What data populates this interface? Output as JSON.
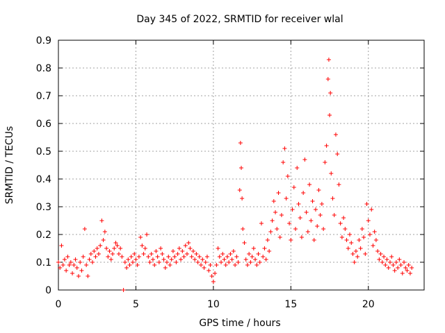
{
  "chart_data": {
    "type": "scatter",
    "title": "Day 345 of 2022, SRMTID for receiver wlal",
    "xlabel": "GPS time / hours",
    "ylabel": "SRMTID / TECUs",
    "xlim": [
      0,
      23.6
    ],
    "ylim": [
      0,
      0.9
    ],
    "xticks": [
      0,
      5,
      10,
      15,
      20
    ],
    "yticks": [
      0,
      0.1,
      0.2,
      0.3,
      0.4,
      0.5,
      0.6,
      0.7,
      0.8,
      0.9
    ],
    "xtick_labels": [
      "0",
      "5",
      "10",
      "15",
      "20"
    ],
    "ytick_labels": [
      "0",
      "0.1",
      "0.2",
      "0.3",
      "0.4",
      "0.5",
      "0.6",
      "0.7",
      "0.8",
      "0.9"
    ],
    "grid": true,
    "marker": "+",
    "color": "#ff0000",
    "series": [
      {
        "name": "SRMTID",
        "points": [
          [
            0.0,
            0.1
          ],
          [
            0.1,
            0.08
          ],
          [
            0.2,
            0.16
          ],
          [
            0.3,
            0.09
          ],
          [
            0.4,
            0.11
          ],
          [
            0.5,
            0.07
          ],
          [
            0.6,
            0.12
          ],
          [
            0.7,
            0.09
          ],
          [
            0.8,
            0.1
          ],
          [
            0.9,
            0.06
          ],
          [
            1.0,
            0.09
          ],
          [
            1.1,
            0.11
          ],
          [
            1.2,
            0.08
          ],
          [
            1.3,
            0.05
          ],
          [
            1.4,
            0.1
          ],
          [
            1.5,
            0.07
          ],
          [
            1.6,
            0.12
          ],
          [
            1.7,
            0.22
          ],
          [
            1.8,
            0.09
          ],
          [
            1.9,
            0.05
          ],
          [
            2.0,
            0.11
          ],
          [
            2.1,
            0.13
          ],
          [
            2.2,
            0.1
          ],
          [
            2.3,
            0.14
          ],
          [
            2.4,
            0.12
          ],
          [
            2.5,
            0.15
          ],
          [
            2.6,
            0.13
          ],
          [
            2.7,
            0.16
          ],
          [
            2.8,
            0.25
          ],
          [
            2.9,
            0.18
          ],
          [
            3.0,
            0.21
          ],
          [
            3.1,
            0.15
          ],
          [
            3.2,
            0.12
          ],
          [
            3.3,
            0.14
          ],
          [
            3.4,
            0.11
          ],
          [
            3.5,
            0.13
          ],
          [
            3.6,
            0.15
          ],
          [
            3.7,
            0.17
          ],
          [
            3.8,
            0.16
          ],
          [
            3.9,
            0.13
          ],
          [
            4.0,
            0.15
          ],
          [
            4.1,
            0.12
          ],
          [
            4.2,
            0.0
          ],
          [
            4.3,
            0.1
          ],
          [
            4.4,
            0.08
          ],
          [
            4.5,
            0.11
          ],
          [
            4.6,
            0.09
          ],
          [
            4.7,
            0.12
          ],
          [
            4.8,
            0.1
          ],
          [
            4.9,
            0.13
          ],
          [
            5.0,
            0.11
          ],
          [
            5.1,
            0.09
          ],
          [
            5.2,
            0.12
          ],
          [
            5.3,
            0.19
          ],
          [
            5.4,
            0.16
          ],
          [
            5.5,
            0.13
          ],
          [
            5.6,
            0.15
          ],
          [
            5.7,
            0.2
          ],
          [
            5.8,
            0.12
          ],
          [
            5.9,
            0.1
          ],
          [
            6.0,
            0.13
          ],
          [
            6.1,
            0.11
          ],
          [
            6.2,
            0.09
          ],
          [
            6.3,
            0.14
          ],
          [
            6.4,
            0.12
          ],
          [
            6.5,
            0.1
          ],
          [
            6.6,
            0.15
          ],
          [
            6.7,
            0.13
          ],
          [
            6.8,
            0.11
          ],
          [
            6.9,
            0.08
          ],
          [
            7.0,
            0.1
          ],
          [
            7.1,
            0.12
          ],
          [
            7.2,
            0.09
          ],
          [
            7.3,
            0.11
          ],
          [
            7.4,
            0.14
          ],
          [
            7.5,
            0.12
          ],
          [
            7.6,
            0.1
          ],
          [
            7.7,
            0.13
          ],
          [
            7.8,
            0.15
          ],
          [
            7.9,
            0.11
          ],
          [
            8.0,
            0.14
          ],
          [
            8.1,
            0.12
          ],
          [
            8.2,
            0.16
          ],
          [
            8.3,
            0.13
          ],
          [
            8.4,
            0.17
          ],
          [
            8.5,
            0.15
          ],
          [
            8.6,
            0.12
          ],
          [
            8.7,
            0.14
          ],
          [
            8.8,
            0.11
          ],
          [
            8.9,
            0.13
          ],
          [
            9.0,
            0.1
          ],
          [
            9.1,
            0.12
          ],
          [
            9.2,
            0.09
          ],
          [
            9.3,
            0.11
          ],
          [
            9.4,
            0.08
          ],
          [
            9.5,
            0.1
          ],
          [
            9.6,
            0.12
          ],
          [
            9.7,
            0.07
          ],
          [
            9.8,
            0.09
          ],
          [
            9.9,
            0.05
          ],
          [
            10.0,
            0.03
          ],
          [
            10.1,
            0.06
          ],
          [
            10.2,
            0.09
          ],
          [
            10.3,
            0.15
          ],
          [
            10.4,
            0.12
          ],
          [
            10.5,
            0.1
          ],
          [
            10.6,
            0.13
          ],
          [
            10.7,
            0.11
          ],
          [
            10.8,
            0.09
          ],
          [
            10.9,
            0.12
          ],
          [
            11.0,
            0.1
          ],
          [
            11.1,
            0.13
          ],
          [
            11.2,
            0.11
          ],
          [
            11.3,
            0.14
          ],
          [
            11.4,
            0.09
          ],
          [
            11.5,
            0.12
          ],
          [
            11.6,
            0.1
          ],
          [
            11.7,
            0.36
          ],
          [
            11.75,
            0.53
          ],
          [
            11.8,
            0.44
          ],
          [
            11.85,
            0.33
          ],
          [
            11.9,
            0.22
          ],
          [
            12.0,
            0.17
          ],
          [
            12.1,
            0.11
          ],
          [
            12.2,
            0.09
          ],
          [
            12.3,
            0.13
          ],
          [
            12.4,
            0.1
          ],
          [
            12.5,
            0.12
          ],
          [
            12.6,
            0.15
          ],
          [
            12.7,
            0.11
          ],
          [
            12.8,
            0.09
          ],
          [
            12.9,
            0.13
          ],
          [
            13.0,
            0.1
          ],
          [
            13.1,
            0.24
          ],
          [
            13.2,
            0.12
          ],
          [
            13.3,
            0.15
          ],
          [
            13.4,
            0.11
          ],
          [
            13.5,
            0.18
          ],
          [
            13.6,
            0.14
          ],
          [
            13.7,
            0.21
          ],
          [
            13.8,
            0.25
          ],
          [
            13.9,
            0.32
          ],
          [
            14.0,
            0.28
          ],
          [
            14.1,
            0.22
          ],
          [
            14.2,
            0.35
          ],
          [
            14.3,
            0.19
          ],
          [
            14.4,
            0.27
          ],
          [
            14.5,
            0.46
          ],
          [
            14.6,
            0.51
          ],
          [
            14.7,
            0.33
          ],
          [
            14.8,
            0.41
          ],
          [
            14.9,
            0.24
          ],
          [
            15.0,
            0.18
          ],
          [
            15.1,
            0.29
          ],
          [
            15.2,
            0.37
          ],
          [
            15.3,
            0.22
          ],
          [
            15.4,
            0.44
          ],
          [
            15.5,
            0.31
          ],
          [
            15.6,
            0.26
          ],
          [
            15.7,
            0.19
          ],
          [
            15.8,
            0.35
          ],
          [
            15.9,
            0.47
          ],
          [
            16.0,
            0.28
          ],
          [
            16.1,
            0.21
          ],
          [
            16.2,
            0.38
          ],
          [
            16.3,
            0.25
          ],
          [
            16.4,
            0.32
          ],
          [
            16.5,
            0.18
          ],
          [
            16.6,
            0.29
          ],
          [
            16.7,
            0.23
          ],
          [
            16.8,
            0.36
          ],
          [
            16.9,
            0.27
          ],
          [
            17.0,
            0.31
          ],
          [
            17.1,
            0.22
          ],
          [
            17.2,
            0.46
          ],
          [
            17.3,
            0.52
          ],
          [
            17.4,
            0.76
          ],
          [
            17.45,
            0.83
          ],
          [
            17.5,
            0.63
          ],
          [
            17.55,
            0.71
          ],
          [
            17.6,
            0.42
          ],
          [
            17.7,
            0.33
          ],
          [
            17.8,
            0.27
          ],
          [
            17.9,
            0.56
          ],
          [
            18.0,
            0.49
          ],
          [
            18.1,
            0.38
          ],
          [
            18.2,
            0.24
          ],
          [
            18.3,
            0.19
          ],
          [
            18.4,
            0.26
          ],
          [
            18.5,
            0.22
          ],
          [
            18.6,
            0.18
          ],
          [
            18.7,
            0.15
          ],
          [
            18.8,
            0.2
          ],
          [
            18.9,
            0.17
          ],
          [
            19.0,
            0.13
          ],
          [
            19.1,
            0.1
          ],
          [
            19.2,
            0.14
          ],
          [
            19.3,
            0.12
          ],
          [
            19.4,
            0.18
          ],
          [
            19.5,
            0.15
          ],
          [
            19.6,
            0.22
          ],
          [
            19.7,
            0.19
          ],
          [
            19.8,
            0.13
          ],
          [
            19.9,
            0.31
          ],
          [
            20.0,
            0.25
          ],
          [
            20.1,
            0.2
          ],
          [
            20.2,
            0.29
          ],
          [
            20.3,
            0.16
          ],
          [
            20.4,
            0.21
          ],
          [
            20.5,
            0.18
          ],
          [
            20.6,
            0.14
          ],
          [
            20.7,
            0.11
          ],
          [
            20.8,
            0.13
          ],
          [
            20.9,
            0.1
          ],
          [
            21.0,
            0.12
          ],
          [
            21.1,
            0.09
          ],
          [
            21.2,
            0.11
          ],
          [
            21.3,
            0.08
          ],
          [
            21.4,
            0.1
          ],
          [
            21.5,
            0.12
          ],
          [
            21.6,
            0.09
          ],
          [
            21.7,
            0.07
          ],
          [
            21.8,
            0.1
          ],
          [
            21.9,
            0.08
          ],
          [
            22.0,
            0.11
          ],
          [
            22.1,
            0.09
          ],
          [
            22.2,
            0.06
          ],
          [
            22.3,
            0.1
          ],
          [
            22.4,
            0.08
          ],
          [
            22.5,
            0.07
          ],
          [
            22.6,
            0.09
          ],
          [
            22.7,
            0.06
          ],
          [
            22.8,
            0.08
          ]
        ]
      }
    ]
  }
}
